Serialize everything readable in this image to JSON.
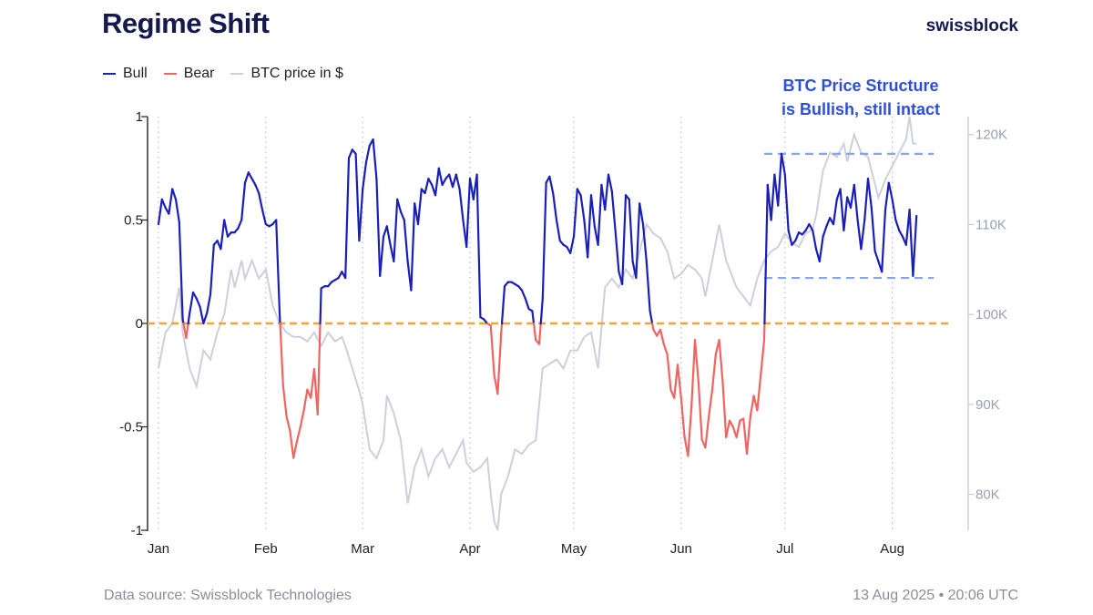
{
  "header": {
    "title": "Regime Shift",
    "brand": "swissblock"
  },
  "legend": [
    {
      "label": "Bull",
      "color": "#1a1fb8"
    },
    {
      "label": "Bear",
      "color": "#ef6461"
    },
    {
      "label": "BTC price in $",
      "color": "#cdd0db"
    }
  ],
  "footer": {
    "source": "Data source: Swissblock Technologies",
    "timestamp": "13 Aug 2025 • 20:06 UTC"
  },
  "chart_data": {
    "type": "line",
    "title": "Regime Shift",
    "colors": {
      "bull": "#1a1fb8",
      "bear": "#ef6461",
      "price": "#cdd0db",
      "zero": "#f0a535",
      "range": "#8aa4f0",
      "annotation": "#2d4ddb"
    },
    "x_labels": [
      "Jan",
      "Feb",
      "Mar",
      "Apr",
      "May",
      "Jun",
      "Jul",
      "Aug"
    ],
    "x_label_days": [
      1,
      32,
      60,
      91,
      121,
      152,
      182,
      213
    ],
    "left_axis": {
      "ylim": [
        -1,
        1
      ],
      "ticks": [
        -1,
        -0.5,
        0,
        0.5,
        1
      ],
      "tick_labels": [
        "-1",
        "-0.5",
        "0",
        "0.5",
        "1"
      ]
    },
    "right_axis": {
      "ylim": [
        76000,
        122000
      ],
      "ticks": [
        80000,
        90000,
        100000,
        110000,
        120000
      ],
      "tick_labels": [
        "80K",
        "90K",
        "100K",
        "110K",
        "120K"
      ]
    },
    "annotation": {
      "lines": [
        "BTC Price Structure",
        "is Bullish, still intact"
      ]
    },
    "range_lines": {
      "upper": 0.82,
      "lower": 0.22,
      "x_start": 176,
      "x_end": 225
    },
    "regime_series": {
      "name": "Regime",
      "points": [
        [
          1,
          0.48
        ],
        [
          2,
          0.6
        ],
        [
          3,
          0.56
        ],
        [
          4,
          0.53
        ],
        [
          5,
          0.65
        ],
        [
          6,
          0.6
        ],
        [
          7,
          0.49
        ],
        [
          8,
          0.02
        ],
        [
          9,
          -0.07
        ],
        [
          10,
          0.05
        ],
        [
          11,
          0.15
        ],
        [
          12,
          0.12
        ],
        [
          13,
          0.08
        ],
        [
          14,
          0.0
        ],
        [
          15,
          0.05
        ],
        [
          16,
          0.14
        ],
        [
          17,
          0.38
        ],
        [
          18,
          0.4
        ],
        [
          19,
          0.36
        ],
        [
          20,
          0.5
        ],
        [
          21,
          0.42
        ],
        [
          22,
          0.44
        ],
        [
          23,
          0.44
        ],
        [
          24,
          0.46
        ],
        [
          25,
          0.5
        ],
        [
          26,
          0.68
        ],
        [
          27,
          0.73
        ],
        [
          28,
          0.7
        ],
        [
          29,
          0.67
        ],
        [
          30,
          0.63
        ],
        [
          31,
          0.55
        ],
        [
          32,
          0.48
        ],
        [
          33,
          0.47
        ],
        [
          34,
          0.48
        ],
        [
          35,
          0.5
        ],
        [
          36,
          0.05
        ],
        [
          37,
          -0.3
        ],
        [
          38,
          -0.45
        ],
        [
          39,
          -0.52
        ],
        [
          40,
          -0.65
        ],
        [
          41,
          -0.57
        ],
        [
          42,
          -0.5
        ],
        [
          43,
          -0.42
        ],
        [
          44,
          -0.32
        ],
        [
          45,
          -0.36
        ],
        [
          46,
          -0.22
        ],
        [
          47,
          -0.44
        ],
        [
          48,
          0.17
        ],
        [
          49,
          0.18
        ],
        [
          50,
          0.18
        ],
        [
          51,
          0.2
        ],
        [
          52,
          0.21
        ],
        [
          53,
          0.22
        ],
        [
          54,
          0.25
        ],
        [
          55,
          0.22
        ],
        [
          56,
          0.8
        ],
        [
          57,
          0.84
        ],
        [
          58,
          0.82
        ],
        [
          59,
          0.4
        ],
        [
          60,
          0.65
        ],
        [
          61,
          0.78
        ],
        [
          62,
          0.86
        ],
        [
          63,
          0.89
        ],
        [
          64,
          0.7
        ],
        [
          65,
          0.23
        ],
        [
          66,
          0.42
        ],
        [
          67,
          0.47
        ],
        [
          68,
          0.38
        ],
        [
          69,
          0.3
        ],
        [
          70,
          0.6
        ],
        [
          71,
          0.54
        ],
        [
          72,
          0.5
        ],
        [
          73,
          0.3
        ],
        [
          74,
          0.16
        ],
        [
          75,
          0.58
        ],
        [
          76,
          0.48
        ],
        [
          77,
          0.65
        ],
        [
          78,
          0.63
        ],
        [
          79,
          0.7
        ],
        [
          80,
          0.67
        ],
        [
          81,
          0.62
        ],
        [
          82,
          0.75
        ],
        [
          83,
          0.67
        ],
        [
          84,
          0.7
        ],
        [
          85,
          0.72
        ],
        [
          86,
          0.66
        ],
        [
          87,
          0.72
        ],
        [
          88,
          0.65
        ],
        [
          89,
          0.5
        ],
        [
          90,
          0.37
        ],
        [
          91,
          0.7
        ],
        [
          92,
          0.6
        ],
        [
          93,
          0.72
        ],
        [
          94,
          0.03
        ],
        [
          95,
          0.02
        ],
        [
          96,
          0.0
        ],
        [
          97,
          -0.01
        ],
        [
          98,
          -0.25
        ],
        [
          99,
          -0.34
        ],
        [
          100,
          -0.05
        ],
        [
          101,
          0.18
        ],
        [
          102,
          0.2
        ],
        [
          103,
          0.2
        ],
        [
          104,
          0.19
        ],
        [
          105,
          0.18
        ],
        [
          106,
          0.16
        ],
        [
          107,
          0.12
        ],
        [
          108,
          0.07
        ],
        [
          109,
          0.06
        ],
        [
          110,
          -0.08
        ],
        [
          111,
          -0.1
        ],
        [
          112,
          0.12
        ],
        [
          113,
          0.68
        ],
        [
          114,
          0.71
        ],
        [
          115,
          0.63
        ],
        [
          116,
          0.5
        ],
        [
          117,
          0.4
        ],
        [
          118,
          0.38
        ],
        [
          119,
          0.37
        ],
        [
          120,
          0.34
        ],
        [
          121,
          0.42
        ],
        [
          122,
          0.65
        ],
        [
          123,
          0.62
        ],
        [
          124,
          0.5
        ],
        [
          125,
          0.32
        ],
        [
          126,
          0.62
        ],
        [
          127,
          0.47
        ],
        [
          128,
          0.38
        ],
        [
          129,
          0.67
        ],
        [
          130,
          0.55
        ],
        [
          131,
          0.72
        ],
        [
          132,
          0.64
        ],
        [
          133,
          0.45
        ],
        [
          134,
          0.25
        ],
        [
          135,
          0.19
        ],
        [
          136,
          0.62
        ],
        [
          137,
          0.6
        ],
        [
          138,
          0.3
        ],
        [
          139,
          0.22
        ],
        [
          140,
          0.58
        ],
        [
          141,
          0.48
        ],
        [
          142,
          0.3
        ],
        [
          143,
          0.06
        ],
        [
          144,
          -0.03
        ],
        [
          145,
          -0.06
        ],
        [
          146,
          -0.03
        ],
        [
          147,
          -0.1
        ],
        [
          148,
          -0.15
        ],
        [
          149,
          -0.32
        ],
        [
          150,
          -0.36
        ],
        [
          151,
          -0.2
        ],
        [
          152,
          -0.36
        ],
        [
          153,
          -0.55
        ],
        [
          154,
          -0.64
        ],
        [
          155,
          -0.4
        ],
        [
          156,
          -0.08
        ],
        [
          157,
          -0.28
        ],
        [
          158,
          -0.56
        ],
        [
          159,
          -0.6
        ],
        [
          160,
          -0.45
        ],
        [
          161,
          -0.32
        ],
        [
          162,
          -0.15
        ],
        [
          163,
          -0.08
        ],
        [
          164,
          -0.28
        ],
        [
          165,
          -0.55
        ],
        [
          166,
          -0.47
        ],
        [
          167,
          -0.5
        ],
        [
          168,
          -0.55
        ],
        [
          169,
          -0.47
        ],
        [
          170,
          -0.46
        ],
        [
          171,
          -0.63
        ],
        [
          172,
          -0.45
        ],
        [
          173,
          -0.35
        ],
        [
          174,
          -0.42
        ],
        [
          175,
          -0.25
        ],
        [
          176,
          -0.08
        ],
        [
          177,
          0.67
        ],
        [
          178,
          0.5
        ],
        [
          179,
          0.72
        ],
        [
          180,
          0.57
        ],
        [
          181,
          0.82
        ],
        [
          182,
          0.72
        ],
        [
          183,
          0.45
        ],
        [
          184,
          0.38
        ],
        [
          185,
          0.4
        ],
        [
          186,
          0.44
        ],
        [
          187,
          0.43
        ],
        [
          188,
          0.45
        ],
        [
          189,
          0.48
        ],
        [
          190,
          0.45
        ],
        [
          191,
          0.36
        ],
        [
          192,
          0.3
        ],
        [
          193,
          0.42
        ],
        [
          194,
          0.47
        ],
        [
          195,
          0.51
        ],
        [
          196,
          0.48
        ],
        [
          197,
          0.6
        ],
        [
          198,
          0.65
        ],
        [
          199,
          0.45
        ],
        [
          200,
          0.61
        ],
        [
          201,
          0.56
        ],
        [
          202,
          0.67
        ],
        [
          203,
          0.5
        ],
        [
          204,
          0.36
        ],
        [
          205,
          0.5
        ],
        [
          206,
          0.7
        ],
        [
          207,
          0.56
        ],
        [
          208,
          0.35
        ],
        [
          209,
          0.3
        ],
        [
          210,
          0.25
        ],
        [
          211,
          0.55
        ],
        [
          212,
          0.68
        ],
        [
          213,
          0.6
        ],
        [
          214,
          0.5
        ],
        [
          215,
          0.45
        ],
        [
          216,
          0.42
        ],
        [
          217,
          0.38
        ],
        [
          218,
          0.55
        ],
        [
          219,
          0.23
        ],
        [
          220,
          0.52
        ]
      ]
    },
    "price_series": {
      "name": "BTC price in $",
      "points": [
        [
          1,
          94000
        ],
        [
          3,
          98000
        ],
        [
          5,
          99000
        ],
        [
          7,
          103000
        ],
        [
          8,
          98000
        ],
        [
          10,
          94000
        ],
        [
          12,
          92000
        ],
        [
          14,
          96000
        ],
        [
          16,
          95000
        ],
        [
          18,
          98000
        ],
        [
          20,
          100000
        ],
        [
          22,
          105000
        ],
        [
          23,
          103000
        ],
        [
          25,
          106000
        ],
        [
          26,
          104000
        ],
        [
          28,
          106000
        ],
        [
          30,
          104000
        ],
        [
          32,
          105000
        ],
        [
          34,
          101000
        ],
        [
          35,
          100000
        ],
        [
          36,
          99000
        ],
        [
          38,
          98000
        ],
        [
          40,
          97500
        ],
        [
          42,
          97500
        ],
        [
          44,
          97000
        ],
        [
          46,
          98000
        ],
        [
          48,
          96500
        ],
        [
          50,
          98000
        ],
        [
          52,
          97000
        ],
        [
          54,
          97500
        ],
        [
          55,
          96500
        ],
        [
          57,
          94000
        ],
        [
          59,
          91500
        ],
        [
          60,
          90000
        ],
        [
          62,
          85000
        ],
        [
          64,
          84000
        ],
        [
          66,
          86000
        ],
        [
          67,
          91000
        ],
        [
          69,
          89000
        ],
        [
          71,
          86000
        ],
        [
          73,
          79000
        ],
        [
          75,
          83000
        ],
        [
          77,
          85000
        ],
        [
          79,
          82000
        ],
        [
          81,
          84000
        ],
        [
          83,
          85000
        ],
        [
          85,
          83000
        ],
        [
          87,
          84500
        ],
        [
          89,
          86000
        ],
        [
          90,
          83500
        ],
        [
          92,
          82500
        ],
        [
          94,
          83000
        ],
        [
          96,
          84000
        ],
        [
          97,
          80000
        ],
        [
          98,
          77000
        ],
        [
          99,
          76000
        ],
        [
          100,
          80000
        ],
        [
          102,
          82000
        ],
        [
          104,
          85000
        ],
        [
          106,
          84500
        ],
        [
          108,
          85500
        ],
        [
          110,
          86000
        ],
        [
          112,
          94000
        ],
        [
          114,
          94500
        ],
        [
          116,
          95000
        ],
        [
          118,
          94000
        ],
        [
          120,
          96000
        ],
        [
          122,
          96000
        ],
        [
          124,
          97500
        ],
        [
          126,
          98000
        ],
        [
          128,
          94000
        ],
        [
          130,
          103000
        ],
        [
          132,
          104000
        ],
        [
          134,
          103000
        ],
        [
          136,
          105000
        ],
        [
          138,
          104000
        ],
        [
          140,
          107000
        ],
        [
          142,
          110000
        ],
        [
          144,
          109000
        ],
        [
          146,
          108500
        ],
        [
          148,
          107000
        ],
        [
          150,
          104000
        ],
        [
          152,
          104500
        ],
        [
          154,
          105500
        ],
        [
          156,
          105000
        ],
        [
          158,
          104000
        ],
        [
          159,
          102000
        ],
        [
          161,
          106000
        ],
        [
          163,
          110000
        ],
        [
          165,
          106000
        ],
        [
          167,
          104000
        ],
        [
          168,
          103000
        ],
        [
          170,
          102000
        ],
        [
          172,
          101000
        ],
        [
          174,
          104000
        ],
        [
          176,
          106000
        ],
        [
          178,
          107000
        ],
        [
          180,
          107500
        ],
        [
          182,
          109000
        ],
        [
          184,
          108000
        ],
        [
          186,
          107500
        ],
        [
          188,
          109000
        ],
        [
          190,
          109500
        ],
        [
          191,
          111000
        ],
        [
          193,
          116000
        ],
        [
          195,
          118000
        ],
        [
          197,
          117500
        ],
        [
          199,
          119000
        ],
        [
          200,
          117000
        ],
        [
          202,
          120000
        ],
        [
          204,
          118000
        ],
        [
          206,
          117500
        ],
        [
          207,
          116000
        ],
        [
          209,
          113000
        ],
        [
          211,
          115000
        ],
        [
          213,
          116500
        ],
        [
          215,
          118000
        ],
        [
          217,
          119500
        ],
        [
          218,
          122000
        ],
        [
          219,
          119000
        ],
        [
          220,
          119000
        ]
      ]
    }
  }
}
